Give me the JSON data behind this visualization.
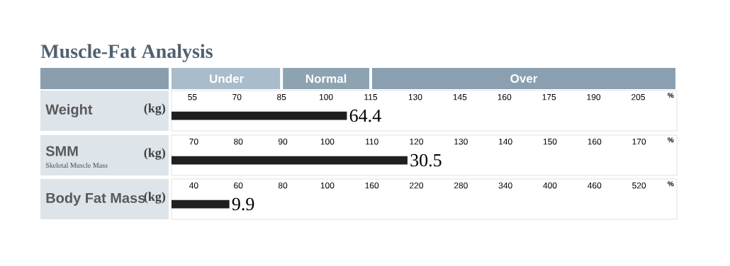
{
  "chart_data": [
    {
      "type": "bar",
      "orientation": "horizontal",
      "title": "Muscle-Fat Analysis",
      "categories": [
        "Weight"
      ],
      "ylabel": "(kg)",
      "xlabel": "%",
      "values": [
        107
      ],
      "color": "#1f1f1f",
      "xlim": [
        48,
        218
      ],
      "xticks": [
        55,
        70,
        85,
        100,
        115,
        130,
        145,
        160,
        175,
        190,
        205
      ],
      "bands": [
        {
          "axis": "x",
          "from": 48,
          "to": 85,
          "label": "Under",
          "color": "#a9bccb"
        },
        {
          "axis": "x",
          "from": 85,
          "to": 115,
          "label": "Normal",
          "color": "#8ea3b2"
        },
        {
          "axis": "x",
          "from": 115,
          "to": 218,
          "label": "Over",
          "color": "#8aa0b1"
        }
      ],
      "annotations": [
        "64.4"
      ]
    },
    {
      "type": "bar",
      "orientation": "horizontal",
      "categories": [
        "SMM"
      ],
      "ylabel": "(kg)",
      "xlabel": "%",
      "values": [
        118
      ],
      "color": "#1f1f1f",
      "xlim": [
        65,
        178.5
      ],
      "xticks": [
        70,
        80,
        90,
        100,
        110,
        120,
        130,
        140,
        150,
        160,
        170
      ],
      "annotations": [
        "Skeletal Muscle Mass",
        "30.5"
      ]
    },
    {
      "type": "bar",
      "orientation": "horizontal",
      "categories": [
        "Body Fat Mass"
      ],
      "ylabel": "(kg)",
      "values": [
        56
      ],
      "color": "#1f1f1f",
      "xlim": [
        30,
        100
      ],
      "xticks": [
        40,
        60,
        80,
        100
      ],
      "annotations": [
        "9.9"
      ]
    },
    {
      "type": "bar",
      "orientation": "horizontal",
      "categories": [
        null
      ],
      "xlabel": "%",
      "values": [
        null
      ],
      "xlim": [
        100,
        571
      ],
      "xticks": [
        160,
        220,
        280,
        340,
        400,
        460,
        520
      ]
    }
  ]
}
